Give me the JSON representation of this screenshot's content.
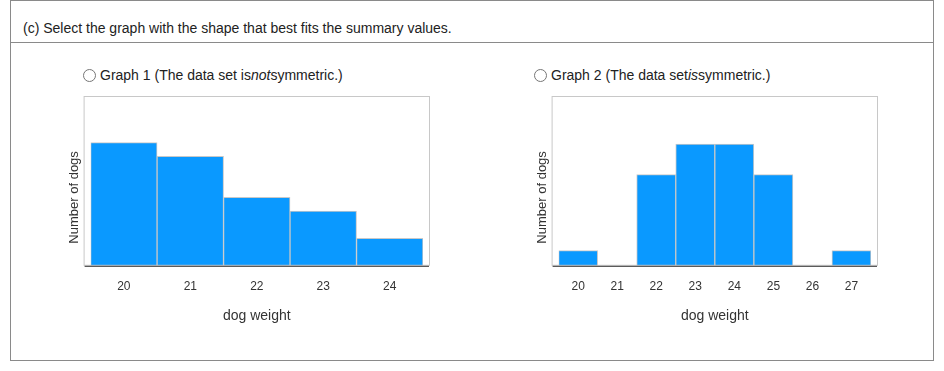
{
  "question": "(c) Select the graph with the shape that best fits the summary values.",
  "options": [
    {
      "label": "Graph 1",
      "before": "(The data set is ",
      "em": "not",
      "after": " symmetric.)"
    },
    {
      "label": "Graph 2",
      "before": "(The data set ",
      "em": "is",
      "after": " symmetric.)"
    }
  ],
  "chart_data": [
    {
      "type": "histogram",
      "x_label": "dog weight",
      "y_label": "Number of dogs",
      "bins": [
        19.5,
        20.5,
        21.5,
        22.5,
        23.5,
        24.5
      ],
      "values": [
        9,
        8,
        5,
        4,
        2
      ],
      "xlim": [
        19.5,
        24.5
      ],
      "xticks": [
        20,
        21,
        22,
        23,
        24
      ],
      "ylim": [
        0,
        10
      ],
      "tick_labels": "x",
      "grid": false,
      "color": "#0a99ff"
    },
    {
      "type": "histogram",
      "x_label": "dog weight",
      "y_label": "Number of dogs",
      "bins": [
        19.5,
        20.5,
        21.5,
        22.5,
        23.5,
        24.5,
        25.5,
        26.5,
        27.5
      ],
      "values": [
        1,
        0,
        6,
        8,
        8,
        6,
        0,
        1
      ],
      "xlim": [
        19.5,
        27.5
      ],
      "xticks": [
        20,
        21,
        22,
        23,
        24,
        25,
        26,
        27
      ],
      "ylim": [
        0,
        9
      ],
      "tick_labels": "x",
      "grid": false,
      "color": "#0a99ff"
    }
  ]
}
